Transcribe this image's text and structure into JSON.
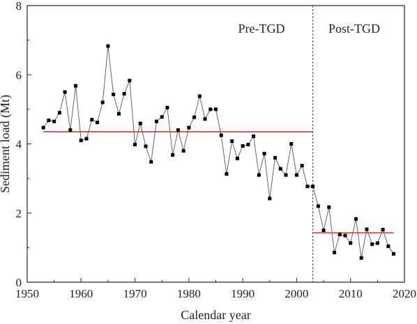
{
  "chart_data": {
    "type": "line",
    "xlabel": "Calendar year",
    "ylabel": "Sediment load (Mt)",
    "xlim": [
      1950,
      2020
    ],
    "ylim": [
      0,
      8
    ],
    "x_ticks": [
      "1950",
      "1960",
      "1970",
      "1980",
      "1990",
      "2000",
      "2010",
      "2020"
    ],
    "y_ticks": [
      "0",
      "2",
      "4",
      "6",
      "8"
    ],
    "grid": false,
    "legend": "none",
    "annotations": [
      {
        "text": "Pre-TGD"
      },
      {
        "text": "Post-TGD"
      }
    ],
    "divider_year": 2003,
    "series": [
      {
        "x": [
          1953,
          1954,
          1955,
          1956,
          1957,
          1958,
          1959,
          1960,
          1961,
          1962,
          1963,
          1964,
          1965,
          1966,
          1967,
          1968,
          1969,
          1970,
          1971,
          1972,
          1973,
          1974,
          1975,
          1976,
          1977,
          1978,
          1979,
          1980,
          1981,
          1982,
          1983,
          1984,
          1985,
          1986,
          1987,
          1988,
          1989,
          1990,
          1991,
          1992,
          1993,
          1994,
          1995,
          1996,
          1997,
          1998,
          1999,
          2000,
          2001,
          2002,
          2003,
          2004,
          2005,
          2006,
          2007,
          2008,
          2009,
          2010,
          2011,
          2012,
          2013,
          2014,
          2015,
          2016,
          2017,
          2018
        ],
        "y": [
          4.47,
          4.68,
          4.65,
          4.9,
          5.5,
          4.4,
          5.68,
          4.1,
          4.15,
          4.7,
          4.62,
          5.2,
          6.83,
          5.43,
          4.87,
          5.45,
          5.83,
          3.98,
          4.59,
          3.93,
          3.48,
          4.65,
          4.78,
          5.05,
          3.68,
          4.4,
          3.8,
          4.47,
          4.77,
          5.38,
          4.72,
          5.0,
          5.0,
          4.25,
          3.13,
          4.08,
          3.58,
          3.94,
          3.98,
          4.22,
          3.1,
          3.72,
          2.42,
          3.6,
          3.28,
          3.1,
          4.0,
          3.1,
          3.37,
          2.77,
          2.77,
          2.2,
          1.5,
          2.17,
          0.86,
          1.38,
          1.35,
          1.13,
          1.83,
          0.7,
          1.53,
          1.1,
          1.13,
          1.52,
          1.04,
          0.82
        ],
        "color": "#555555",
        "marker": "square"
      }
    ],
    "mean_lines": [
      {
        "x_start": 1953,
        "x_end": 2003,
        "y": 4.35,
        "color": "#e0201b"
      },
      {
        "x_start": 2003,
        "x_end": 2018,
        "y": 1.43,
        "color": "#e0201b"
      }
    ]
  }
}
